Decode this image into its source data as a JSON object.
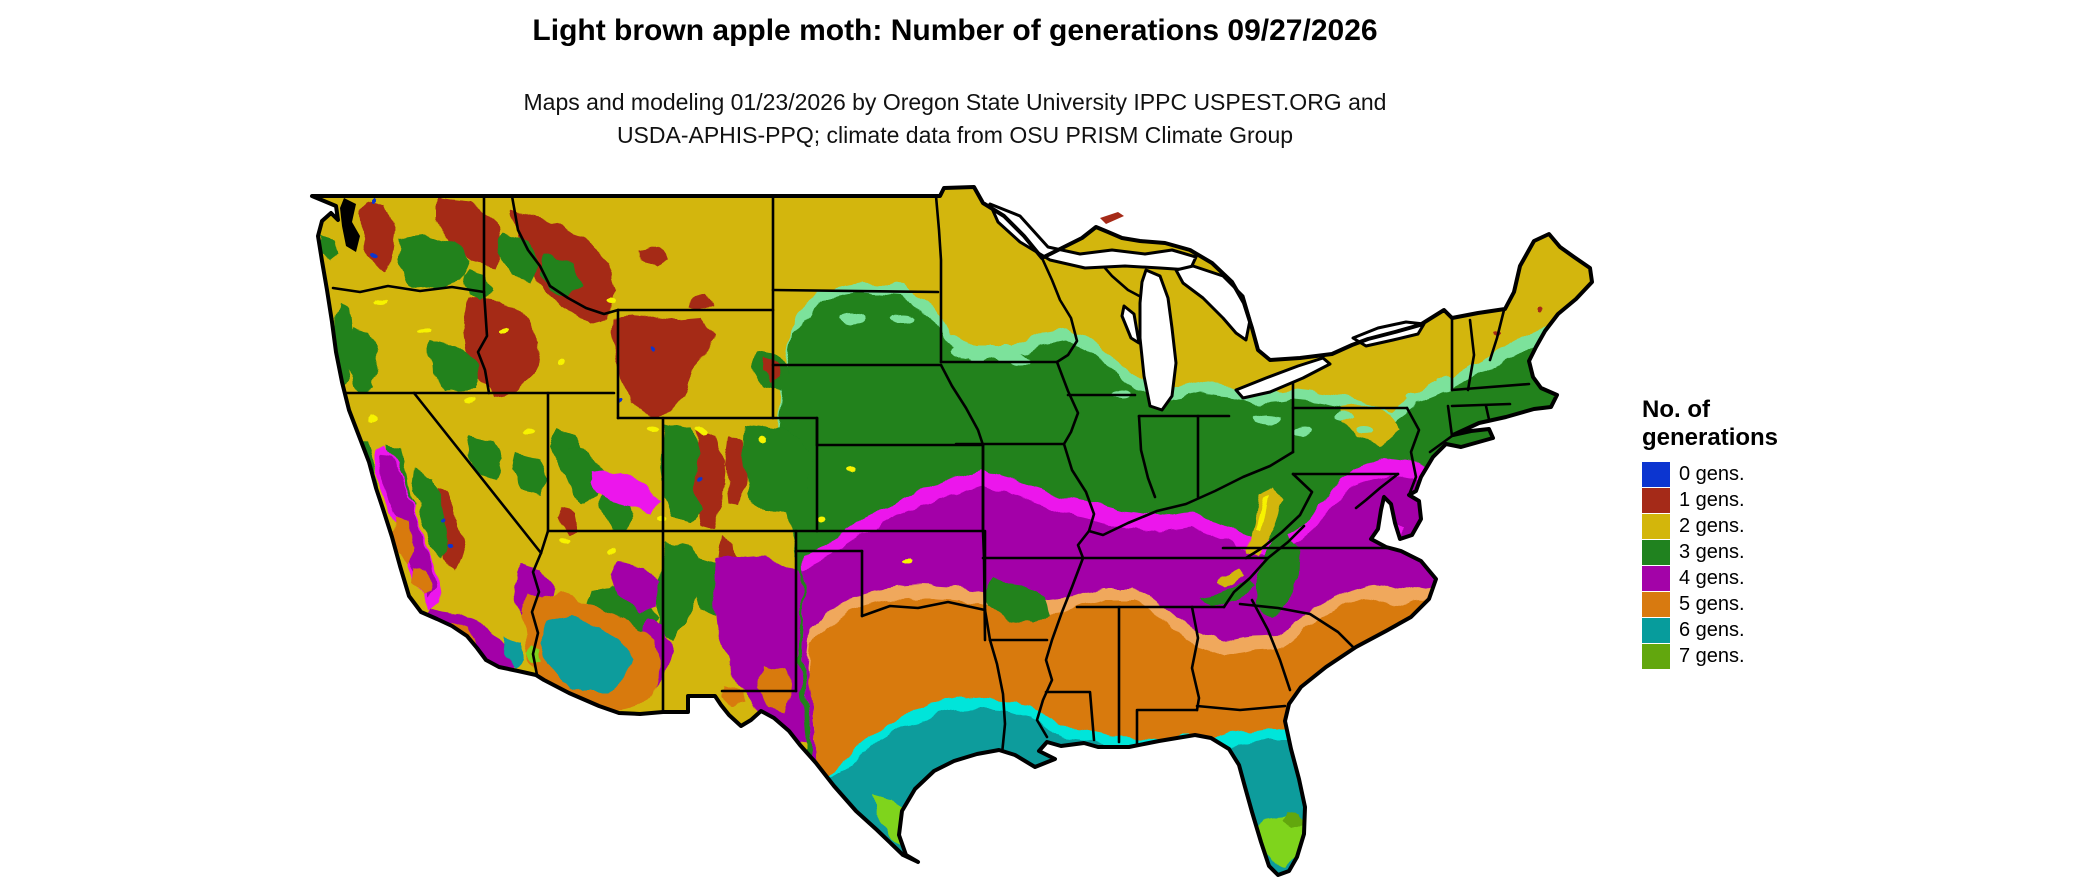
{
  "header": {
    "title": "Light brown apple moth: Number of generations 09/27/2026",
    "subtitle_line1": "Maps and modeling 01/23/2026 by Oregon State University IPPC USPEST.ORG and",
    "subtitle_line2": "USDA-APHIS-PPQ; climate data from OSU PRISM Climate Group"
  },
  "legend": {
    "title_line1": "No. of",
    "title_line2": "generations",
    "items": [
      {
        "label": "0 gens.",
        "color": "#0c35d0"
      },
      {
        "label": "1 gens.",
        "color": "#a52a18"
      },
      {
        "label": "2 gens.",
        "color": "#d3b60b"
      },
      {
        "label": "3 gens.",
        "color": "#20821f"
      },
      {
        "label": "4 gens.",
        "color": "#a303a8"
      },
      {
        "label": "5 gens.",
        "color": "#d87a10"
      },
      {
        "label": "6 gens.",
        "color": "#079c9c"
      },
      {
        "label": "7 gens.",
        "color": "#62a70e"
      }
    ]
  },
  "palette": {
    "mint": "#7ce29b",
    "magenta_bright": "#ec12ec",
    "orange_light": "#f0a85c",
    "cyan_bright": "#00e5da",
    "yellow_bright": "#f7f300",
    "chartreuse_bright": "#7fd41c",
    "water": "#ffffff",
    "border": "#000000",
    "background": "#ffffff"
  }
}
